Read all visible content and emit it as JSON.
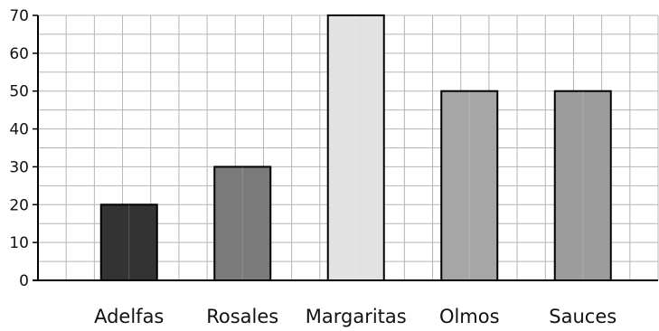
{
  "chart_data": {
    "type": "bar",
    "categories": [
      "Adelfas",
      "Rosales",
      "Margaritas",
      "Olmos",
      "Sauces"
    ],
    "values": [
      20,
      30,
      70,
      50,
      50
    ],
    "bar_colors": [
      "#333333",
      "#7a7a7a",
      "#e2e2e2",
      "#a6a6a6",
      "#9c9c9c"
    ],
    "grid_color": "#b5b5b5",
    "title": "",
    "xlabel": "",
    "ylabel": "",
    "ylim": [
      0,
      70
    ],
    "yticks": [
      0,
      10,
      20,
      30,
      40,
      50,
      60,
      70
    ],
    "grid": true
  }
}
